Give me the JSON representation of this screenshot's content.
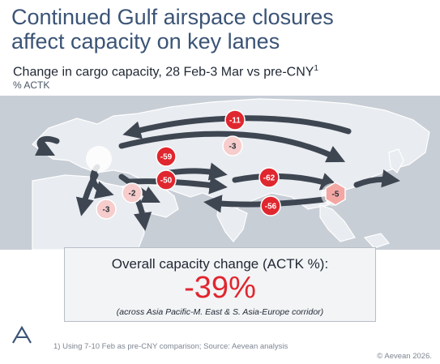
{
  "title": {
    "line1": "Continued Gulf airspace closures",
    "line2": "affect capacity on key lanes"
  },
  "subtitle": {
    "text": "Change in cargo capacity, 28 Feb-3 Mar vs pre-CNY",
    "footnote_mark": "1"
  },
  "unit": "% ACTK",
  "colors": {
    "title": "#3b5476",
    "strong_decline": "#e0262e",
    "mild_decline": "#f6cdcc",
    "hub_highlight": "#f3a7a3",
    "land": "#e9ecf0",
    "water": "#c8ced6",
    "arrow": "#3e4652"
  },
  "markers": [
    {
      "id": "m1",
      "label": "-11",
      "shape": "circle",
      "tone": "strong"
    },
    {
      "id": "m2",
      "label": "-3",
      "shape": "circle",
      "tone": "mild"
    },
    {
      "id": "m3",
      "label": "-59",
      "shape": "circle",
      "tone": "strong"
    },
    {
      "id": "m4",
      "label": "-50",
      "shape": "circle",
      "tone": "strong"
    },
    {
      "id": "m5",
      "label": "-62",
      "shape": "circle",
      "tone": "strong"
    },
    {
      "id": "m6",
      "label": "-56",
      "shape": "circle",
      "tone": "strong"
    },
    {
      "id": "m7",
      "label": "-2",
      "shape": "circle",
      "tone": "mild"
    },
    {
      "id": "m8",
      "label": "-3",
      "shape": "circle",
      "tone": "mild"
    },
    {
      "id": "m9",
      "label": "-5",
      "shape": "hexagon",
      "tone": "hub"
    }
  ],
  "summary": {
    "label": "Overall capacity change (ACTK %):",
    "value": "-39%",
    "note": "(across Asia Pacific-M. East & S. Asia-Europe corridor)"
  },
  "footnote": "1) Using 7-10 Feb as pre-CNY comparison; Source: Aevean analysis",
  "copyright": "© Aevean 2026."
}
